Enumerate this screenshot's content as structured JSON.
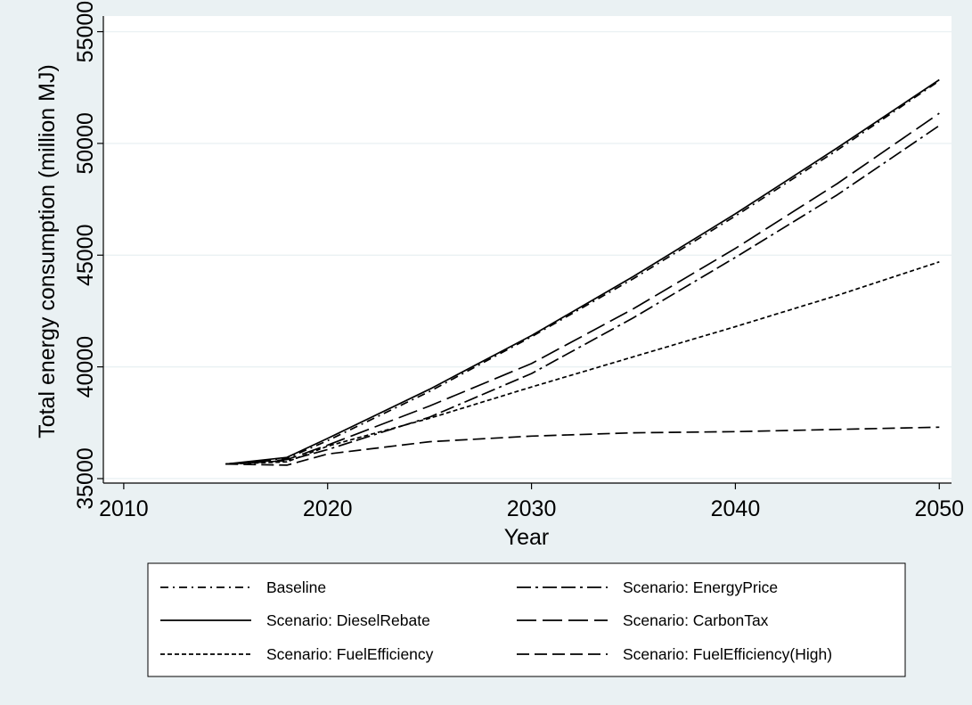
{
  "chart_data": {
    "type": "line",
    "title": "",
    "xlabel": "Year",
    "ylabel": "Total energy consumption (million MJ)",
    "xlim": [
      2009,
      2050.6
    ],
    "ylim": [
      34800,
      55700
    ],
    "xticks": [
      2010,
      2020,
      2030,
      2040,
      2050
    ],
    "yticks": [
      35000,
      40000,
      45000,
      50000,
      55000
    ],
    "grid": "horizontal",
    "legend_position": "bottom",
    "series": [
      {
        "name": "Baseline",
        "style": "dash-dot",
        "x": [
          2015,
          2018,
          2020,
          2025,
          2030,
          2035,
          2040,
          2045,
          2050
        ],
        "y": [
          35650,
          35900,
          36700,
          38900,
          41350,
          43950,
          46750,
          49700,
          52800
        ]
      },
      {
        "name": "Scenario: EnergyPrice",
        "style": "long-dash-dot",
        "x": [
          2015,
          2018,
          2020,
          2025,
          2030,
          2035,
          2040,
          2045,
          2050
        ],
        "y": [
          35650,
          35800,
          36300,
          37750,
          39700,
          42200,
          44900,
          47700,
          50800
        ]
      },
      {
        "name": "Scenario: DieselRebate",
        "style": "solid",
        "x": [
          2015,
          2018,
          2020,
          2025,
          2030,
          2035,
          2040,
          2045,
          2050
        ],
        "y": [
          35650,
          35950,
          36800,
          39000,
          41400,
          44050,
          46850,
          49800,
          52850
        ]
      },
      {
        "name": "Scenario: CarbonTax",
        "style": "long-dash",
        "x": [
          2015,
          2018,
          2020,
          2025,
          2030,
          2035,
          2040,
          2045,
          2050
        ],
        "y": [
          35650,
          35850,
          36500,
          38250,
          40150,
          42600,
          45300,
          48200,
          51350
        ]
      },
      {
        "name": "Scenario: FuelEfficiency",
        "style": "short-dash",
        "x": [
          2015,
          2018,
          2020,
          2025,
          2030,
          2035,
          2040,
          2045,
          2050
        ],
        "y": [
          35650,
          35750,
          36450,
          37700,
          39100,
          40450,
          41800,
          43200,
          44700
        ]
      },
      {
        "name": "Scenario: FuelEfficiency(High)",
        "style": "medium-dash",
        "x": [
          2015,
          2018,
          2020,
          2025,
          2030,
          2035,
          2040,
          2045,
          2050
        ],
        "y": [
          35650,
          35600,
          36100,
          36650,
          36900,
          37050,
          37100,
          37200,
          37300
        ]
      }
    ]
  },
  "colors": {
    "background": "#eaf1f3",
    "plot_area": "#ffffff",
    "gridline": "#eaf1f3",
    "line": "#000000"
  }
}
